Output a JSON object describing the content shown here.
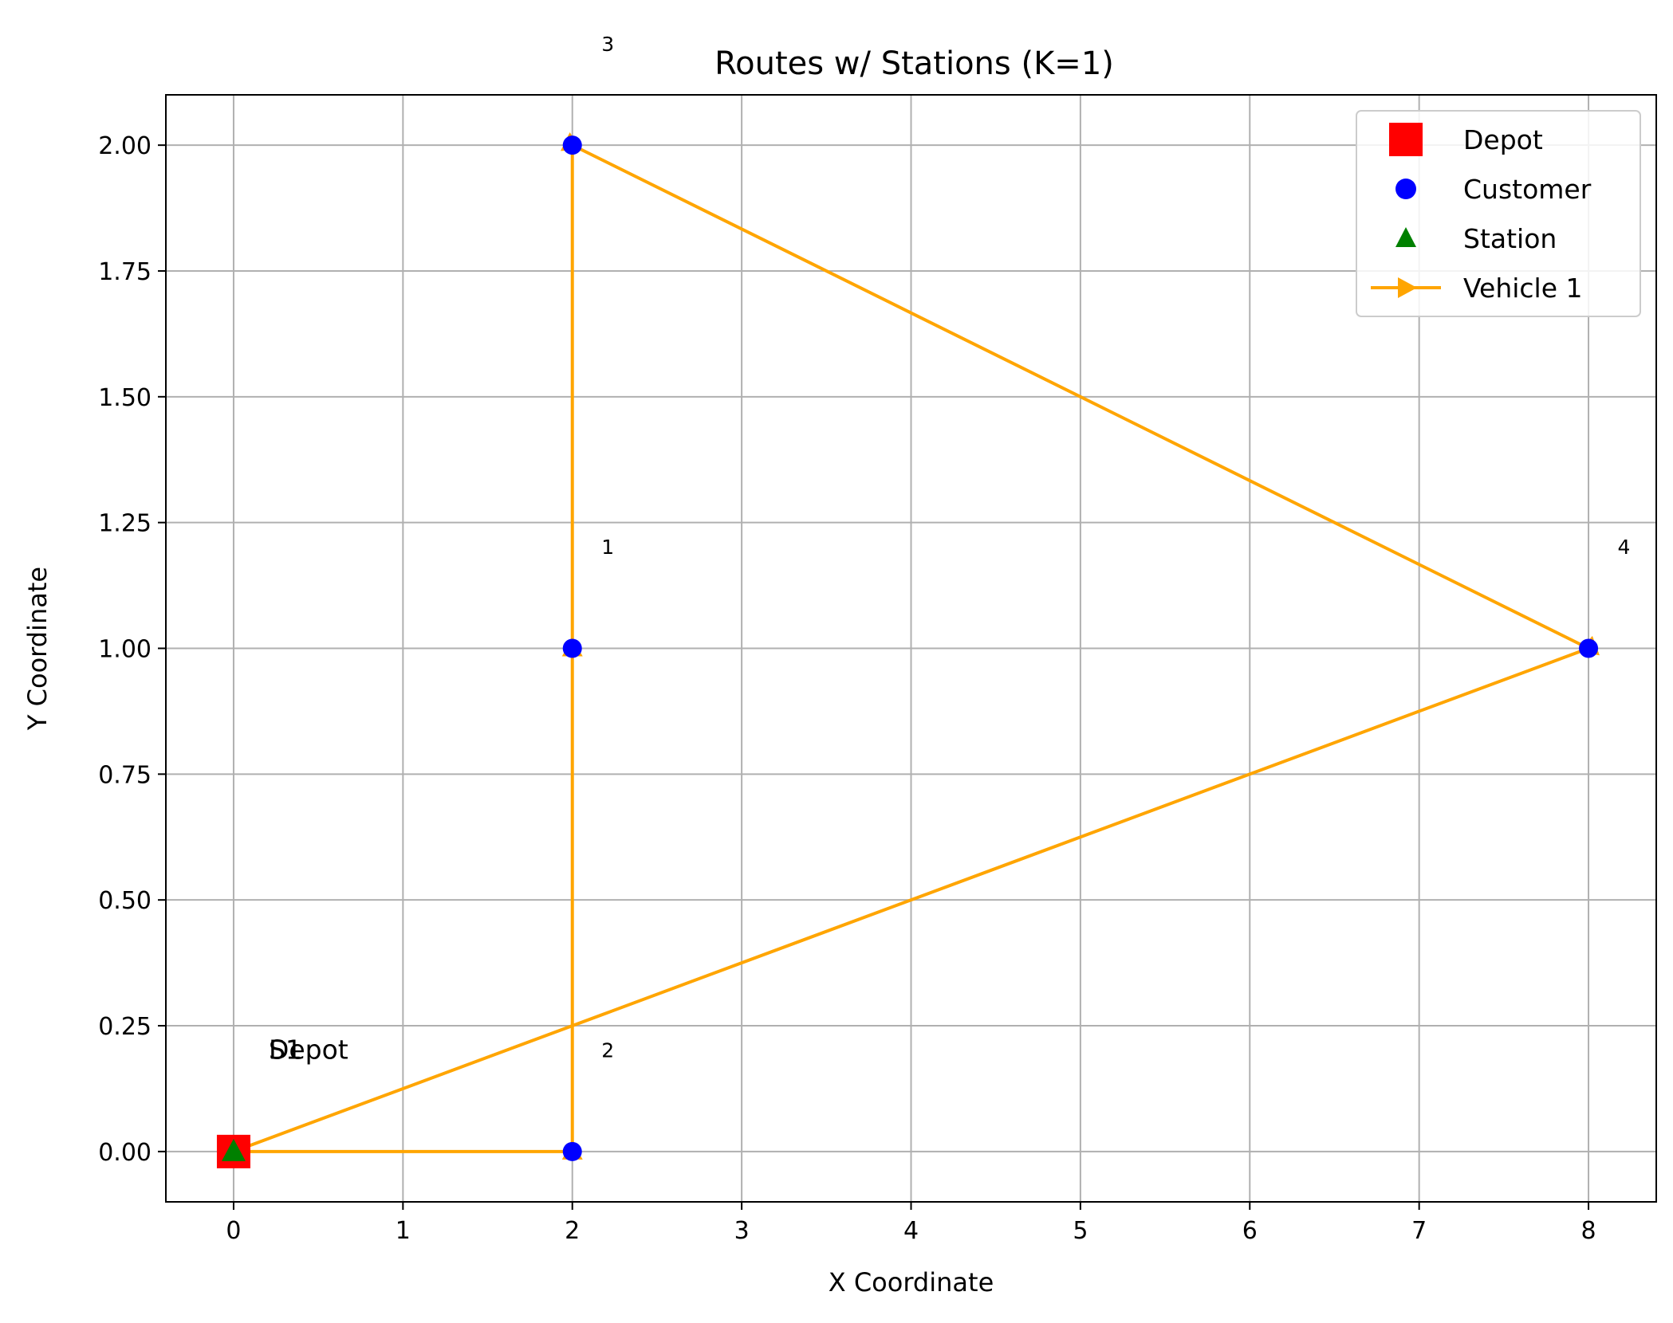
{
  "chart_data": {
    "type": "scatter",
    "title": "Routes w/ Stations (K=1)",
    "xlabel": "X Coordinate",
    "ylabel": "Y Coordinate",
    "xlim": [
      -0.4,
      8.4
    ],
    "ylim": [
      -0.1,
      2.1
    ],
    "xticks": [
      0,
      1,
      2,
      3,
      4,
      5,
      6,
      7,
      8
    ],
    "xtick_labels": [
      "0",
      "1",
      "2",
      "3",
      "4",
      "5",
      "6",
      "7",
      "8"
    ],
    "yticks": [
      0.0,
      0.25,
      0.5,
      0.75,
      1.0,
      1.25,
      1.5,
      1.75,
      2.0
    ],
    "ytick_labels": [
      "0.00",
      "0.25",
      "0.50",
      "0.75",
      "1.00",
      "1.25",
      "1.50",
      "1.75",
      "2.00"
    ],
    "grid": true,
    "legend_position": "top-right",
    "legend": [
      {
        "label": "Depot",
        "marker": "square",
        "color": "#ff0000"
      },
      {
        "label": "Customer",
        "marker": "circle",
        "color": "#0000ff"
      },
      {
        "label": "Station",
        "marker": "triangle",
        "color": "#008000"
      },
      {
        "label": "Vehicle 1",
        "marker": "line-arrow",
        "color": "#ffa500"
      }
    ],
    "depot": {
      "x": 0,
      "y": 0,
      "label": "Depot"
    },
    "stations": [
      {
        "x": 0,
        "y": 0,
        "label": "S1"
      }
    ],
    "customers": [
      {
        "id": "1",
        "x": 2,
        "y": 1
      },
      {
        "id": "2",
        "x": 2,
        "y": 0
      },
      {
        "id": "3",
        "x": 2,
        "y": 2
      },
      {
        "id": "4",
        "x": 8,
        "y": 1
      }
    ],
    "routes": [
      {
        "name": "Vehicle 1",
        "color": "#ffa500",
        "path": [
          [
            0,
            0
          ],
          [
            2,
            0
          ],
          [
            2,
            1
          ],
          [
            2,
            2
          ],
          [
            8,
            1
          ],
          [
            0,
            0
          ]
        ]
      }
    ]
  }
}
